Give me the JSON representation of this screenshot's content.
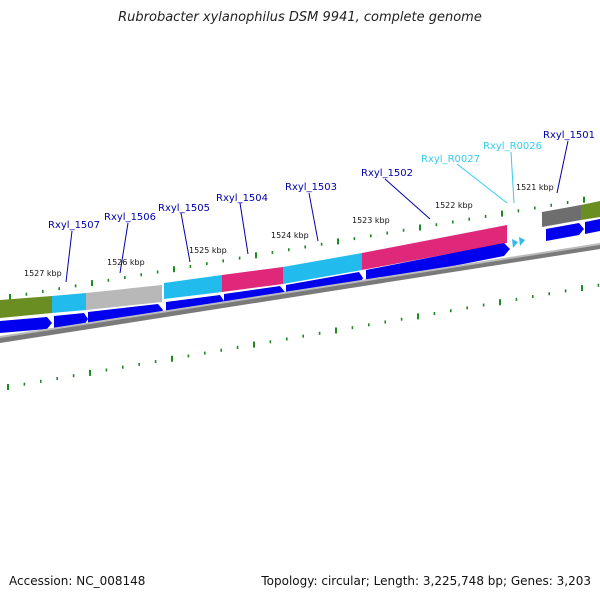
{
  "title": "Rubrobacter xylanophilus DSM 9941, complete genome",
  "footer": {
    "accession": "Accession: NC_008148",
    "summary": "Topology: circular; Length: 3,225,748 bp; Genes: 3,203"
  },
  "colors": {
    "tick": "#1f8a1f",
    "cds_arrow": "#0000ee",
    "protein_label": "#0000aa",
    "rna_label": "#33ccee",
    "backbone": "#808080"
  },
  "kbp_labels": [
    {
      "label": "1521 kbp",
      "kbp": 1521
    },
    {
      "label": "1522 kbp",
      "kbp": 1522
    },
    {
      "label": "1523 kbp",
      "kbp": 1523
    },
    {
      "label": "1524 kbp",
      "kbp": 1524
    },
    {
      "label": "1525 kbp",
      "kbp": 1525
    },
    {
      "label": "1526 kbp",
      "kbp": 1526
    },
    {
      "label": "1527 kbp",
      "kbp": 1527
    }
  ],
  "genes": [
    {
      "name": "Rxyl_1501",
      "type": "protein"
    },
    {
      "name": "Rxyl_R0026",
      "type": "rna"
    },
    {
      "name": "Rxyl_R0027",
      "type": "rna"
    },
    {
      "name": "Rxyl_1502",
      "type": "protein"
    },
    {
      "name": "Rxyl_1503",
      "type": "protein"
    },
    {
      "name": "Rxyl_1504",
      "type": "protein"
    },
    {
      "name": "Rxyl_1505",
      "type": "protein"
    },
    {
      "name": "Rxyl_1506",
      "type": "protein"
    },
    {
      "name": "Rxyl_1507",
      "type": "protein"
    }
  ]
}
